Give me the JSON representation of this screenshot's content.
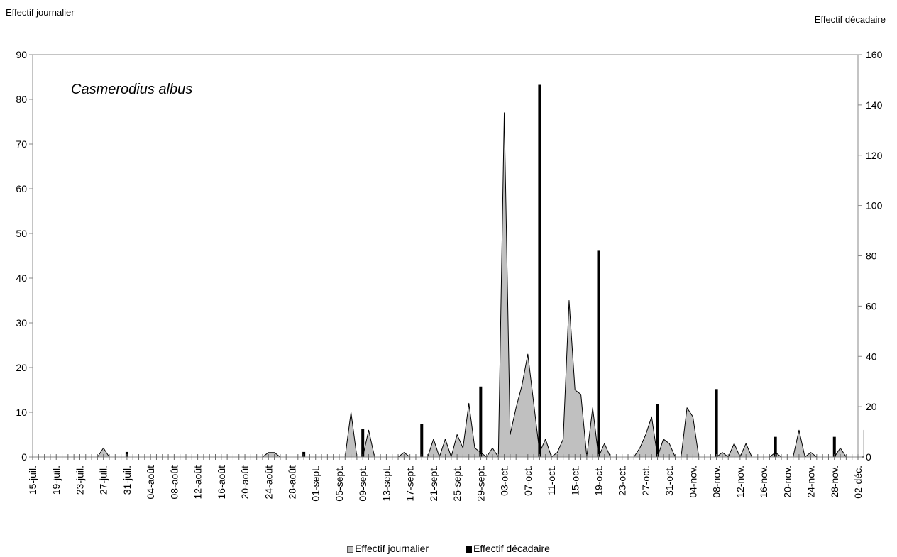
{
  "chart_data": {
    "type": "area+bar",
    "annotation": "Casmerodius albus",
    "left_axis_title": "Effectif journalier",
    "right_axis_title": "Effectif décadaire",
    "left_axis": {
      "min": 0,
      "max": 90,
      "step": 10
    },
    "right_axis": {
      "min": 0,
      "max": 160,
      "step": 20
    },
    "x_range": {
      "start": "2013-07-15",
      "end": "2013-12-02"
    },
    "x_tick_labels": [
      "15-juil.",
      "19-juil.",
      "23-juil.",
      "27-juil.",
      "31-juil.",
      "04-août",
      "08-août",
      "12-août",
      "16-août",
      "20-août",
      "24-août",
      "28-août",
      "01-sept.",
      "05-sept.",
      "09-sept.",
      "13-sept.",
      "17-sept.",
      "21-sept.",
      "25-sept.",
      "29-sept.",
      "03-oct.",
      "07-oct.",
      "11-oct.",
      "15-oct.",
      "19-oct.",
      "23-oct.",
      "27-oct.",
      "31-oct.",
      "04-nov.",
      "08-nov.",
      "12-nov.",
      "16-nov.",
      "20-nov.",
      "24-nov.",
      "28-nov.",
      "02-déc."
    ],
    "legend": {
      "position": "bottom",
      "items": [
        {
          "label": "Effectif journalier",
          "color": "#c0c0c0"
        },
        {
          "label": "Effectif décadaire",
          "color": "#000000"
        }
      ]
    },
    "series": [
      {
        "name": "Effectif journalier",
        "axis": "left",
        "kind": "area",
        "color": "#c0c0c0",
        "points": [
          [
            "2013-07-26",
            0
          ],
          [
            "2013-07-27",
            2
          ],
          [
            "2013-07-28",
            0
          ],
          [
            "2013-08-23",
            0
          ],
          [
            "2013-08-24",
            1
          ],
          [
            "2013-08-25",
            1
          ],
          [
            "2013-08-26",
            0
          ],
          [
            "2013-09-06",
            0
          ],
          [
            "2013-09-07",
            10
          ],
          [
            "2013-09-08",
            0
          ],
          [
            "2013-09-09",
            0
          ],
          [
            "2013-09-10",
            6
          ],
          [
            "2013-09-11",
            0
          ],
          [
            "2013-09-15",
            0
          ],
          [
            "2013-09-16",
            1
          ],
          [
            "2013-09-17",
            0
          ],
          [
            "2013-09-20",
            0
          ],
          [
            "2013-09-21",
            4
          ],
          [
            "2013-09-22",
            0
          ],
          [
            "2013-09-23",
            4
          ],
          [
            "2013-09-24",
            0
          ],
          [
            "2013-09-25",
            5
          ],
          [
            "2013-09-26",
            2
          ],
          [
            "2013-09-27",
            12
          ],
          [
            "2013-09-28",
            2
          ],
          [
            "2013-09-29",
            1
          ],
          [
            "2013-09-30",
            0
          ],
          [
            "2013-10-01",
            2
          ],
          [
            "2013-10-02",
            0
          ],
          [
            "2013-10-03",
            77
          ],
          [
            "2013-10-04",
            5
          ],
          [
            "2013-10-05",
            11
          ],
          [
            "2013-10-06",
            16
          ],
          [
            "2013-10-07",
            23
          ],
          [
            "2013-10-08",
            12
          ],
          [
            "2013-10-09",
            1
          ],
          [
            "2013-10-10",
            4
          ],
          [
            "2013-10-11",
            0
          ],
          [
            "2013-10-12",
            1
          ],
          [
            "2013-10-13",
            4
          ],
          [
            "2013-10-14",
            35
          ],
          [
            "2013-10-15",
            15
          ],
          [
            "2013-10-16",
            14
          ],
          [
            "2013-10-17",
            0
          ],
          [
            "2013-10-18",
            11
          ],
          [
            "2013-10-19",
            0
          ],
          [
            "2013-10-20",
            3
          ],
          [
            "2013-10-21",
            0
          ],
          [
            "2013-10-25",
            0
          ],
          [
            "2013-10-26",
            2
          ],
          [
            "2013-10-27",
            5
          ],
          [
            "2013-10-28",
            9
          ],
          [
            "2013-10-29",
            0
          ],
          [
            "2013-10-30",
            4
          ],
          [
            "2013-10-31",
            3
          ],
          [
            "2013-11-01",
            0
          ],
          [
            "2013-11-02",
            0
          ],
          [
            "2013-11-03",
            11
          ],
          [
            "2013-11-04",
            9
          ],
          [
            "2013-11-05",
            0
          ],
          [
            "2013-11-08",
            0
          ],
          [
            "2013-11-09",
            1
          ],
          [
            "2013-11-10",
            0
          ],
          [
            "2013-11-11",
            3
          ],
          [
            "2013-11-12",
            0
          ],
          [
            "2013-11-13",
            3
          ],
          [
            "2013-11-14",
            0
          ],
          [
            "2013-11-17",
            0
          ],
          [
            "2013-11-18",
            1
          ],
          [
            "2013-11-19",
            0
          ],
          [
            "2013-11-21",
            0
          ],
          [
            "2013-11-22",
            6
          ],
          [
            "2013-11-23",
            0
          ],
          [
            "2013-11-24",
            1
          ],
          [
            "2013-11-25",
            0
          ],
          [
            "2013-11-28",
            0
          ],
          [
            "2013-11-29",
            2
          ],
          [
            "2013-11-30",
            0
          ],
          [
            "2013-12-05",
            0
          ],
          [
            "2013-12-06",
            6
          ],
          [
            "2013-12-07",
            0
          ]
        ]
      },
      {
        "name": "Effectif décadaire",
        "axis": "right",
        "kind": "bar",
        "color": "#000000",
        "points": [
          [
            "2013-07-31",
            2
          ],
          [
            "2013-08-30",
            2
          ],
          [
            "2013-09-09",
            11
          ],
          [
            "2013-09-19",
            13
          ],
          [
            "2013-09-29",
            28
          ],
          [
            "2013-10-09",
            148
          ],
          [
            "2013-10-19",
            82
          ],
          [
            "2013-10-29",
            21
          ],
          [
            "2013-11-08",
            27
          ],
          [
            "2013-11-18",
            8
          ],
          [
            "2013-11-28",
            8
          ]
        ]
      }
    ]
  }
}
